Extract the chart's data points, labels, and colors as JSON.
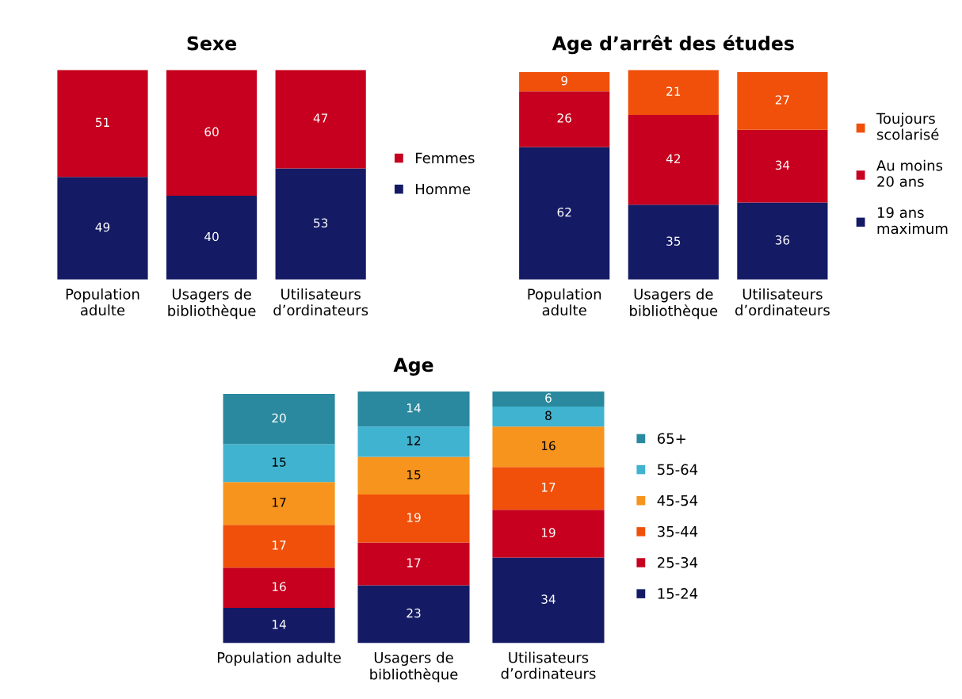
{
  "chart_data": [
    {
      "type": "bar",
      "title": "Sexe",
      "stacked": true,
      "data_labels": true,
      "legend": "right",
      "grid": false,
      "tick_labels": "x",
      "categories": [
        "Population\nadulte",
        "Usagers de\nbibliothèque",
        "Utilisateurs\nd’ordinateurs"
      ],
      "series": [
        {
          "name": "Homme",
          "color": "#141a64",
          "values": [
            49,
            40,
            53
          ]
        },
        {
          "name": "Femmes",
          "color": "#c6001e",
          "values": [
            51,
            60,
            47
          ]
        }
      ]
    },
    {
      "type": "bar",
      "title": "Age d’arrêt des études",
      "stacked": true,
      "data_labels": true,
      "legend": "right",
      "grid": false,
      "tick_labels": "x",
      "categories": [
        "Population\nadulte",
        "Usagers de\nbibliothèque",
        "Utilisateurs\nd’ordinateurs"
      ],
      "series": [
        {
          "name": "19 ans\nmaximum",
          "color": "#141a64",
          "values": [
            62,
            35,
            36
          ]
        },
        {
          "name": "Au moins\n20 ans",
          "color": "#c6001e",
          "values": [
            26,
            42,
            34
          ]
        },
        {
          "name": "Toujours\nscolarisé",
          "color": "#f0500a",
          "values": [
            9,
            21,
            27
          ]
        }
      ]
    },
    {
      "type": "bar",
      "title": "Age",
      "stacked": true,
      "data_labels": true,
      "legend": "right",
      "grid": false,
      "tick_labels": "x",
      "categories": [
        "Population adulte",
        "Usagers de\nbibliothèque",
        "Utilisateurs\nd’ordinateurs"
      ],
      "series": [
        {
          "name": "15-24",
          "color": "#141a64",
          "values": [
            14,
            23,
            34
          ]
        },
        {
          "name": "25-34",
          "color": "#c6001e",
          "values": [
            16,
            17,
            19
          ]
        },
        {
          "name": "35-44",
          "color": "#f0500a",
          "values": [
            17,
            19,
            17
          ]
        },
        {
          "name": "45-54",
          "color": "#f7941d",
          "values": [
            17,
            15,
            16
          ]
        },
        {
          "name": "55-64",
          "color": "#40b3d0",
          "values": [
            15,
            12,
            8
          ]
        },
        {
          "name": "65+",
          "color": "#2a899e",
          "values": [
            20,
            14,
            6
          ]
        }
      ]
    }
  ]
}
